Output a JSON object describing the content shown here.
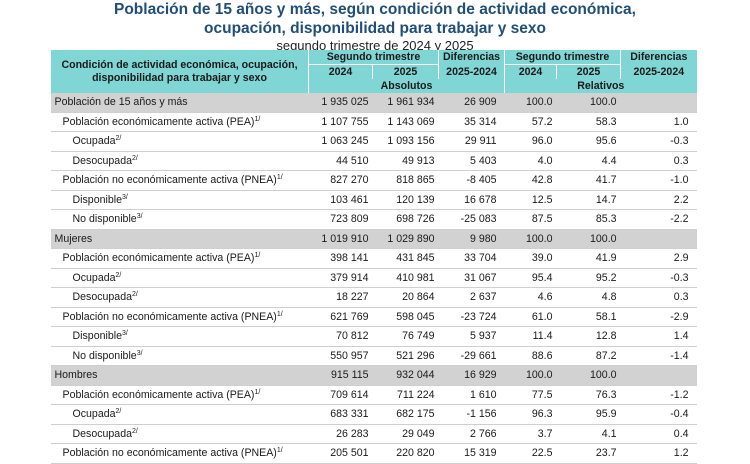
{
  "title_line1": "Población de 15 años y más, según condición de actividad económica,",
  "title_line2": "ocupación, disponibilidad para trabajar y sexo",
  "subtitle": "segundo trimestre de 2024 y 2025",
  "header": {
    "row_label": "Condición de actividad económica, ocupación, disponibilidad para trabajar y sexo",
    "group_abs": "Segundo trimestre",
    "diff_abs": "Diferencias",
    "group_rel": "Segundo trimestre",
    "diff_rel": "Diferencias",
    "y2024": "2024",
    "y2025": "2025",
    "diff_range": "2025-2024",
    "y2024_rel": "2024",
    "y2025_rel": "2025",
    "diff_range_rel": "2025-2024",
    "absolutos": "Absolutos",
    "relativos": "Relativos"
  },
  "rows": [
    {
      "label": "Población de 15 años y más",
      "sup": "",
      "level": 0,
      "section": true,
      "a2024": "1 935 025",
      "a2025": "1 961 934",
      "adiff": "26 909",
      "r2024": "100.0",
      "r2025": "100.0",
      "rdiff": ""
    },
    {
      "label": "Población económicamente activa (PEA)",
      "sup": "1/",
      "level": 1,
      "section": false,
      "a2024": "1 107 755",
      "a2025": "1 143 069",
      "adiff": "35 314",
      "r2024": "57.2",
      "r2025": "58.3",
      "rdiff": "1.0"
    },
    {
      "label": "Ocupada",
      "sup": "2/",
      "level": 2,
      "section": false,
      "a2024": "1 063 245",
      "a2025": "1 093 156",
      "adiff": "29 911",
      "r2024": "96.0",
      "r2025": "95.6",
      "rdiff": "-0.3"
    },
    {
      "label": "Desocupada",
      "sup": "2/",
      "level": 2,
      "section": false,
      "a2024": "44 510",
      "a2025": "49 913",
      "adiff": "5 403",
      "r2024": "4.0",
      "r2025": "4.4",
      "rdiff": "0.3"
    },
    {
      "label": "Población no económicamente activa (PNEA)",
      "sup": "1/",
      "level": 1,
      "section": false,
      "a2024": "827 270",
      "a2025": "818 865",
      "adiff": "-8 405",
      "r2024": "42.8",
      "r2025": "41.7",
      "rdiff": "-1.0"
    },
    {
      "label": "Disponible",
      "sup": "3/",
      "level": 2,
      "section": false,
      "a2024": "103 461",
      "a2025": "120 139",
      "adiff": "16 678",
      "r2024": "12.5",
      "r2025": "14.7",
      "rdiff": "2.2"
    },
    {
      "label": "No disponible",
      "sup": "3/",
      "level": 2,
      "section": false,
      "a2024": "723 809",
      "a2025": "698 726",
      "adiff": "-25 083",
      "r2024": "87.5",
      "r2025": "85.3",
      "rdiff": "-2.2"
    },
    {
      "label": "Mujeres",
      "sup": "",
      "level": 0,
      "section": true,
      "a2024": "1 019 910",
      "a2025": "1 029 890",
      "adiff": "9 980",
      "r2024": "100.0",
      "r2025": "100.0",
      "rdiff": ""
    },
    {
      "label": "Población económicamente activa (PEA)",
      "sup": "1/",
      "level": 1,
      "section": false,
      "a2024": "398 141",
      "a2025": "431 845",
      "adiff": "33 704",
      "r2024": "39.0",
      "r2025": "41.9",
      "rdiff": "2.9"
    },
    {
      "label": "Ocupada",
      "sup": "2/",
      "level": 2,
      "section": false,
      "a2024": "379 914",
      "a2025": "410 981",
      "adiff": "31 067",
      "r2024": "95.4",
      "r2025": "95.2",
      "rdiff": "-0.3"
    },
    {
      "label": "Desocupada",
      "sup": "2/",
      "level": 2,
      "section": false,
      "a2024": "18 227",
      "a2025": "20 864",
      "adiff": "2 637",
      "r2024": "4.6",
      "r2025": "4.8",
      "rdiff": "0.3"
    },
    {
      "label": "Población no económicamente activa (PNEA)",
      "sup": "1/",
      "level": 1,
      "section": false,
      "a2024": "621 769",
      "a2025": "598 045",
      "adiff": "-23 724",
      "r2024": "61.0",
      "r2025": "58.1",
      "rdiff": "-2.9"
    },
    {
      "label": "Disponible",
      "sup": "3/",
      "level": 2,
      "section": false,
      "a2024": "70 812",
      "a2025": "76 749",
      "adiff": "5 937",
      "r2024": "11.4",
      "r2025": "12.8",
      "rdiff": "1.4"
    },
    {
      "label": "No disponible",
      "sup": "3/",
      "level": 2,
      "section": false,
      "a2024": "550 957",
      "a2025": "521 296",
      "adiff": "-29 661",
      "r2024": "88.6",
      "r2025": "87.2",
      "rdiff": "-1.4"
    },
    {
      "label": "Hombres",
      "sup": "",
      "level": 0,
      "section": true,
      "a2024": "915 115",
      "a2025": "932 044",
      "adiff": "16 929",
      "r2024": "100.0",
      "r2025": "100.0",
      "rdiff": ""
    },
    {
      "label": "Población económicamente activa (PEA)",
      "sup": "1/",
      "level": 1,
      "section": false,
      "a2024": "709 614",
      "a2025": "711 224",
      "adiff": "1 610",
      "r2024": "77.5",
      "r2025": "76.3",
      "rdiff": "-1.2"
    },
    {
      "label": "Ocupada",
      "sup": "2/",
      "level": 2,
      "section": false,
      "a2024": "683 331",
      "a2025": "682 175",
      "adiff": "-1 156",
      "r2024": "96.3",
      "r2025": "95.9",
      "rdiff": "-0.4"
    },
    {
      "label": "Desocupada",
      "sup": "2/",
      "level": 2,
      "section": false,
      "a2024": "26 283",
      "a2025": "29 049",
      "adiff": "2 766",
      "r2024": "3.7",
      "r2025": "4.1",
      "rdiff": "0.4"
    },
    {
      "label": "Población no económicamente activa (PNEA)",
      "sup": "1/",
      "level": 1,
      "section": false,
      "a2024": "205 501",
      "a2025": "220 820",
      "adiff": "15 319",
      "r2024": "22.5",
      "r2025": "23.7",
      "rdiff": "1.2"
    }
  ],
  "colors": {
    "header_bg": "#7fd6d4",
    "section_bg": "#d2d2d2",
    "title": "#1f4e79"
  }
}
